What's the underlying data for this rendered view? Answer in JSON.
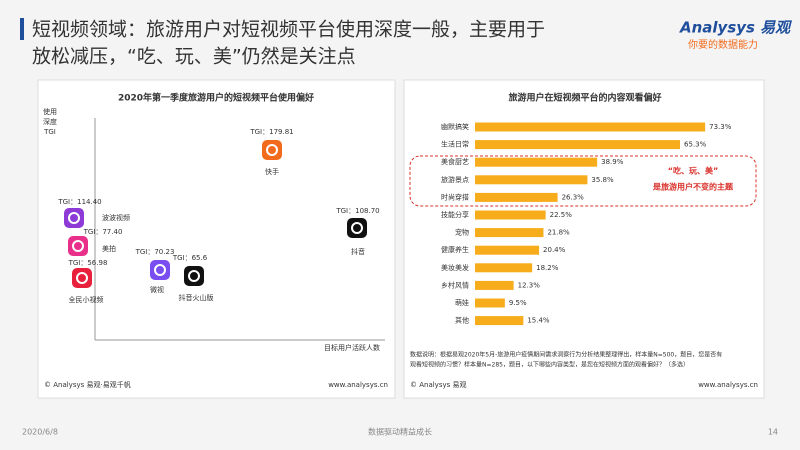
{
  "header": {
    "title_line1": "短视频领域：旅游用户对短视频平台使用深度一般，主要用于",
    "title_line2": "放松减压，“吃、玩、美”仍然是关注点",
    "logo": "Analysys 易观",
    "slogan": "你要的数据能力"
  },
  "left_chart": {
    "title": "2020年第一季度旅游用户的短视频平台使用偏好",
    "y_label_lines": [
      "使用",
      "深度",
      "TGI"
    ],
    "x_label": "目标用户活跃人数",
    "points": [
      {
        "name": "快手",
        "tgi": 179.81,
        "tgi_label": "TGI：179.81",
        "color": "#f26b1d"
      },
      {
        "name": "抖音",
        "tgi": 108.7,
        "tgi_label": "TGI：108.70",
        "color": "#111111"
      },
      {
        "name": "波波视频",
        "tgi": 114.4,
        "tgi_label": "TGI：114.40",
        "color": "#8e3ad6"
      },
      {
        "name": "美拍",
        "tgi": 77.4,
        "tgi_label": "TGI：77.40",
        "color": "#e8308a"
      },
      {
        "name": "全民小视频",
        "tgi": 56.98,
        "tgi_label": "TGI：56.98",
        "color": "#e8203c"
      },
      {
        "name": "微视",
        "tgi": 70.23,
        "tgi_label": "TGI：70.23",
        "color": "#7a4df0"
      },
      {
        "name": "抖音火山版",
        "tgi": 65.6,
        "tgi_label": "TGI：65.6",
        "color": "#111111"
      }
    ],
    "source": "© Analysys 易观·易观千帆",
    "site": "www.analysys.cn"
  },
  "chart_data": {
    "type": "bar",
    "title": "旅游用户在短视频平台的内容观看偏好",
    "categories": [
      "幽默搞笑",
      "生活日常",
      "美食厨艺",
      "旅游景点",
      "时尚穿搭",
      "技能分享",
      "宠物",
      "健康养生",
      "美妆美发",
      "乡村风情",
      "萌娃",
      "其他"
    ],
    "values": [
      73.3,
      65.3,
      38.9,
      35.8,
      26.3,
      22.5,
      21.8,
      20.4,
      18.2,
      12.3,
      9.5,
      15.4
    ],
    "value_labels": [
      "73.3%",
      "65.3%",
      "38.9%",
      "35.8%",
      "26.3%",
      "22.5%",
      "21.8%",
      "20.4%",
      "18.2%",
      "12.3%",
      "9.5%",
      "15.4%"
    ],
    "color": "#f7ac1b",
    "annotation_lines": [
      "“吃、玩、美”",
      "是旅游用户不变的主题"
    ],
    "note_lines": [
      "数据说明：根据易观2020年5月-旅游用户疫情期间需求洞察行为分析结果整理得出，样本量N=500，题目，您是否有",
      "观看短视频的习惯？样本量N=285，题目，以下哪些内容类型，是您在短视频方面的观看偏好？（多选）"
    ],
    "source": "© Analysys 易观",
    "site": "www.analysys.cn"
  },
  "footer": {
    "date": "2020/6/8",
    "slogan": "数据驱动精益成长",
    "page": "14"
  }
}
